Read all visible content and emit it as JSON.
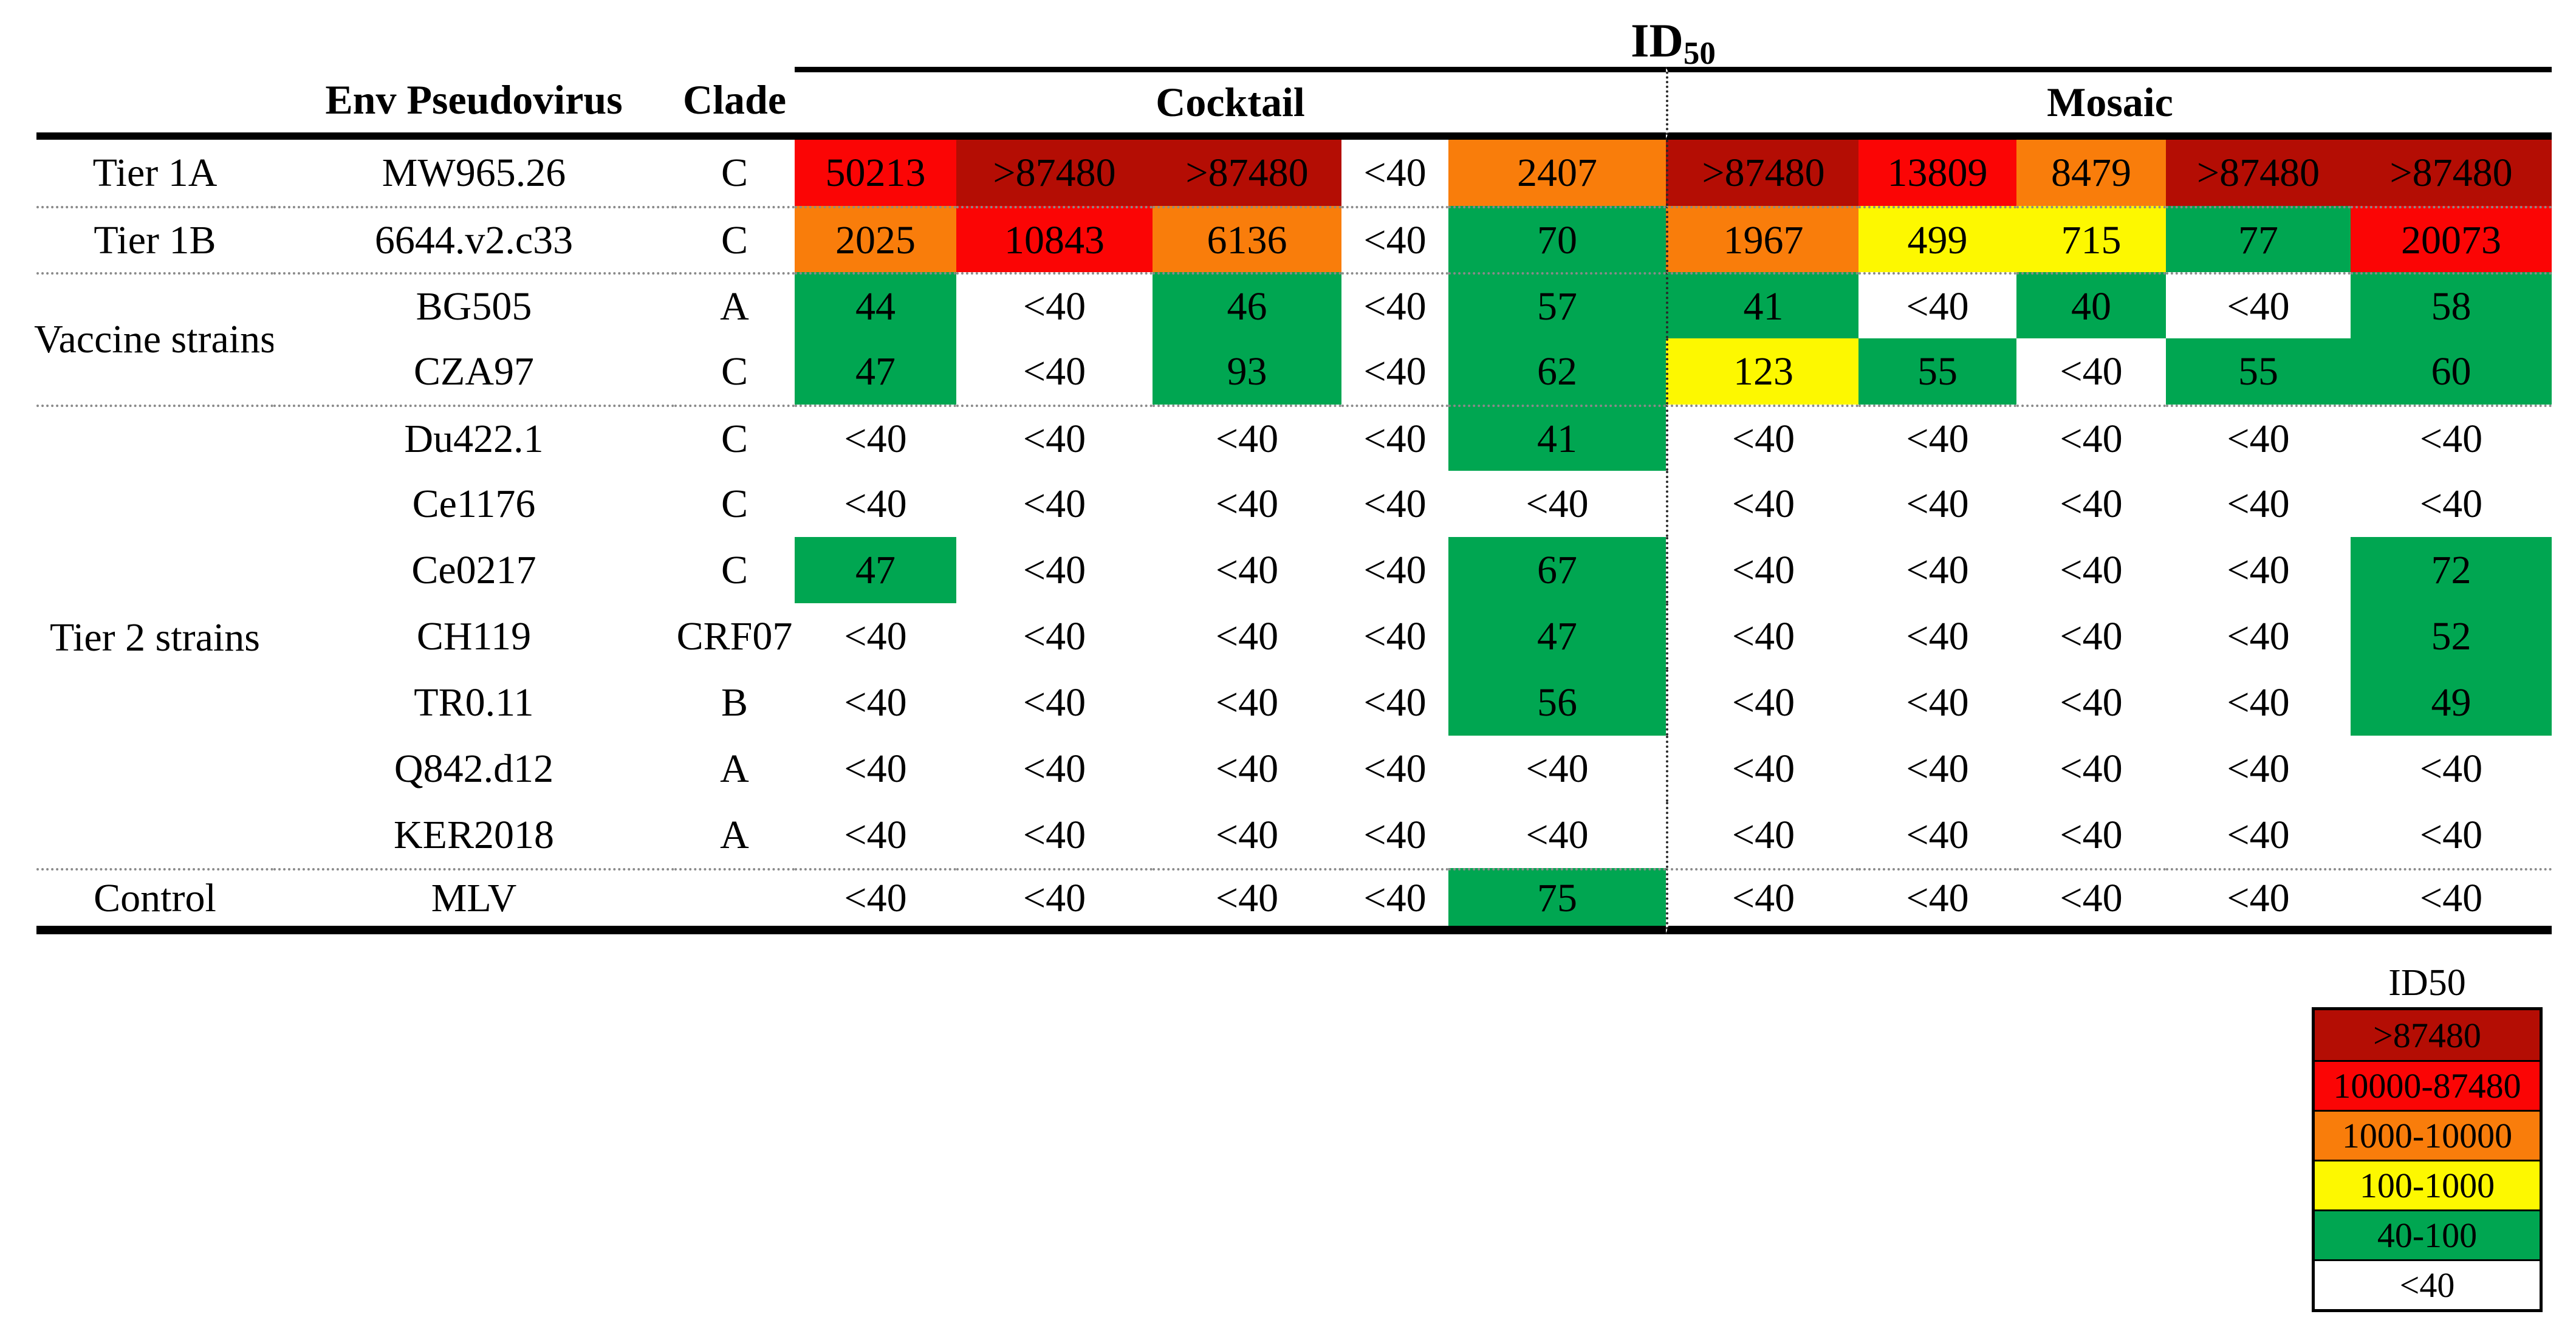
{
  "title": {
    "main": "ID",
    "sub": "50"
  },
  "header": {
    "env": "Env Pseudovirus",
    "clade": "Clade",
    "cocktail": "Cocktail",
    "mosaic": "Mosaic"
  },
  "legend": {
    "title": "ID50",
    "entries": [
      {
        "label": ">87480",
        "color": "#B40D04"
      },
      {
        "label": "10000-87480",
        "color": "#FB0505"
      },
      {
        "label": "1000-10000",
        "color": "#F97D0B"
      },
      {
        "label": "100-1000",
        "color": "#FDF800"
      },
      {
        "label": "40-100",
        "color": "#00A651"
      },
      {
        "label": "<40",
        "color": "#FFFFFF"
      }
    ]
  },
  "colors": {
    "darkred": "#B40D04",
    "red": "#FB0505",
    "orange": "#F97D0B",
    "yellow": "#FDF800",
    "green": "#00A651",
    "white": "#FFFFFF",
    "limit_value": 87480,
    "detection_limit": 40
  },
  "chart_data": {
    "type": "heatmap",
    "title": "ID50",
    "column_groups": [
      "Cocktail",
      "Mosaic"
    ],
    "columns_per_group": 5,
    "value_scale": [
      ">87480",
      "10000-87480",
      "1000-10000",
      "100-1000",
      "40-100",
      "<40"
    ],
    "rows": [
      {
        "tier": "Tier 1A",
        "strain": "MW965.26",
        "clade": "C",
        "cocktail": [
          "50213",
          ">87480",
          ">87480",
          "<40",
          "2407"
        ],
        "mosaic": [
          ">87480",
          "13809",
          "8479",
          ">87480",
          ">87480"
        ]
      },
      {
        "tier": "Tier 1B",
        "strain": "6644.v2.c33",
        "clade": "C",
        "cocktail": [
          "2025",
          "10843",
          "6136",
          "<40",
          "70"
        ],
        "mosaic": [
          "1967",
          "499",
          "715",
          "77",
          "20073"
        ]
      },
      {
        "tier": "Vaccine strains",
        "strain": "BG505",
        "clade": "A",
        "cocktail": [
          "44",
          "<40",
          "46",
          "<40",
          "57"
        ],
        "mosaic": [
          "41",
          "<40",
          "40",
          "<40",
          "58"
        ]
      },
      {
        "tier": "Vaccine strains",
        "strain": "CZA97",
        "clade": "C",
        "cocktail": [
          "47",
          "<40",
          "93",
          "<40",
          "62"
        ],
        "mosaic": [
          "123",
          "55",
          "<40",
          "55",
          "60"
        ]
      },
      {
        "tier": "Tier 2 strains",
        "strain": "Du422.1",
        "clade": "C",
        "cocktail": [
          "<40",
          "<40",
          "<40",
          "<40",
          "41"
        ],
        "mosaic": [
          "<40",
          "<40",
          "<40",
          "<40",
          "<40"
        ]
      },
      {
        "tier": "Tier 2 strains",
        "strain": "Ce1176",
        "clade": "C",
        "cocktail": [
          "<40",
          "<40",
          "<40",
          "<40",
          "<40"
        ],
        "mosaic": [
          "<40",
          "<40",
          "<40",
          "<40",
          "<40"
        ]
      },
      {
        "tier": "Tier 2 strains",
        "strain": "Ce0217",
        "clade": "C",
        "cocktail": [
          "47",
          "<40",
          "<40",
          "<40",
          "67"
        ],
        "mosaic": [
          "<40",
          "<40",
          "<40",
          "<40",
          "72"
        ]
      },
      {
        "tier": "Tier 2 strains",
        "strain": "CH119",
        "clade": "CRF07",
        "cocktail": [
          "<40",
          "<40",
          "<40",
          "<40",
          "47"
        ],
        "mosaic": [
          "<40",
          "<40",
          "<40",
          "<40",
          "52"
        ]
      },
      {
        "tier": "Tier 2 strains",
        "strain": "TR0.11",
        "clade": "B",
        "cocktail": [
          "<40",
          "<40",
          "<40",
          "<40",
          "56"
        ],
        "mosaic": [
          "<40",
          "<40",
          "<40",
          "<40",
          "49"
        ]
      },
      {
        "tier": "Tier 2 strains",
        "strain": "Q842.d12",
        "clade": "A",
        "cocktail": [
          "<40",
          "<40",
          "<40",
          "<40",
          "<40"
        ],
        "mosaic": [
          "<40",
          "<40",
          "<40",
          "<40",
          "<40"
        ]
      },
      {
        "tier": "Tier 2 strains",
        "strain": "KER2018",
        "clade": "A",
        "cocktail": [
          "<40",
          "<40",
          "<40",
          "<40",
          "<40"
        ],
        "mosaic": [
          "<40",
          "<40",
          "<40",
          "<40",
          "<40"
        ]
      },
      {
        "tier": "Control",
        "strain": "MLV",
        "clade": "",
        "cocktail": [
          "<40",
          "<40",
          "<40",
          "<40",
          "75"
        ],
        "mosaic": [
          "<40",
          "<40",
          "<40",
          "<40",
          "<40"
        ]
      }
    ]
  }
}
